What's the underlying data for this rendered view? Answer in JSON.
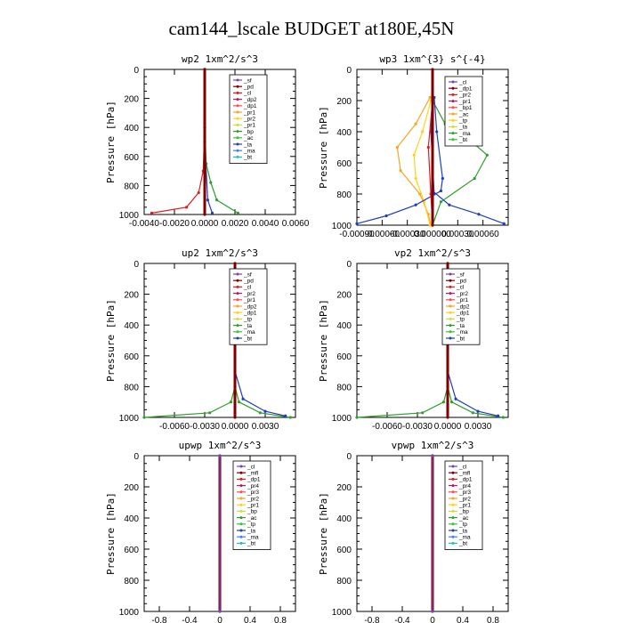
{
  "page": {
    "title": "cam144_lscale  BUDGET at180E,45N"
  },
  "chart_data": [
    {
      "id": "wp2",
      "type": "line",
      "title": "wp2  1xm^2/s^3",
      "ylabel": "Pressure [hPa]",
      "xlim": [
        -0.004,
        0.006
      ],
      "ylim": [
        1000,
        0
      ],
      "xticks": [
        -0.004,
        -0.002,
        0.0,
        0.002,
        0.004,
        0.006
      ],
      "xtick_labels": [
        "-0.0040",
        "-0.0020",
        "0.0000",
        "0.0020",
        "0.0040",
        "0.0060"
      ],
      "yticks": [
        0,
        200,
        400,
        600,
        800,
        1000
      ],
      "legend_position": "top-right",
      "legend": [
        "_sf",
        "_pd",
        "_cl",
        "_dp2",
        "_dp1",
        "_pr1",
        "_pr2",
        "_pr1",
        "_bp",
        "_ac",
        "_ta",
        "_ma",
        "_bt"
      ],
      "series": [
        {
          "name": "_dp1",
          "color": "#e41a1c",
          "points": [
            [
              0,
              0
            ],
            [
              0,
              400
            ],
            [
              -0.0001,
              700
            ],
            [
              -0.0004,
              850
            ],
            [
              -0.0012,
              950
            ],
            [
              -0.0035,
              990
            ]
          ]
        },
        {
          "name": "_pr1",
          "color": "#2ca02c",
          "points": [
            [
              0,
              0
            ],
            [
              0,
              400
            ],
            [
              0.0001,
              650
            ],
            [
              0.0004,
              780
            ],
            [
              0.0008,
              900
            ],
            [
              0.0022,
              990
            ]
          ]
        },
        {
          "name": "_ac",
          "color": "#1f3fbf",
          "points": [
            [
              0,
              0
            ],
            [
              0,
              500
            ],
            [
              0.0002,
              900
            ],
            [
              0.0005,
              990
            ]
          ]
        },
        {
          "name": "_bt",
          "color": "#800000",
          "points": [
            [
              0,
              0
            ],
            [
              0,
              1000
            ]
          ]
        }
      ]
    },
    {
      "id": "wp3",
      "type": "line",
      "title": "wp3  1xm^{3} s^{-4}",
      "ylabel": "Pressure [hPa]",
      "xlim": [
        -0.0009,
        0.0009
      ],
      "ylim": [
        1000,
        0
      ],
      "xticks": [
        -0.0009,
        -0.0006,
        -0.0003,
        0.0,
        0.0003,
        0.0006
      ],
      "xtick_labels": [
        "-0.00090",
        "-0.00060",
        "-0.00030",
        "0.000000",
        "0.00030",
        "0.00060"
      ],
      "yticks": [
        0,
        200,
        400,
        600,
        800,
        1000
      ],
      "legend_position": "top-right",
      "legend": [
        "_cl",
        "_dp1",
        "_pr2",
        "_pr1",
        "_bp1",
        "_ac",
        "_tp",
        "_ta",
        "_ma",
        "_bt"
      ],
      "series": [
        {
          "name": "_pr1",
          "color": "#f5a623",
          "points": [
            [
              -3e-05,
              180
            ],
            [
              -0.0002,
              350
            ],
            [
              -0.00042,
              500
            ],
            [
              -0.00038,
              650
            ],
            [
              -0.00015,
              800
            ],
            [
              -5e-05,
              930
            ],
            [
              -2e-05,
              1000
            ]
          ]
        },
        {
          "name": "_pr2",
          "color": "#ffd21a",
          "points": [
            [
              -2e-05,
              200
            ],
            [
              -0.00012,
              400
            ],
            [
              -0.00022,
              550
            ],
            [
              -0.0002,
              700
            ],
            [
              -0.0001,
              850
            ],
            [
              -3e-05,
              1000
            ]
          ]
        },
        {
          "name": "_bp1",
          "color": "#2ca02c",
          "points": [
            [
              0,
              200
            ],
            [
              0.00015,
              350
            ],
            [
              0.0005,
              480
            ],
            [
              0.00065,
              550
            ],
            [
              0.0005,
              700
            ],
            [
              0.0001,
              850
            ],
            [
              0,
              1000
            ]
          ]
        },
        {
          "name": "_ac",
          "color": "#1f3fbf",
          "points": [
            [
              2e-05,
              180
            ],
            [
              5e-05,
              400
            ],
            [
              0.00012,
              700
            ],
            [
              0.0001,
              780
            ],
            [
              -0.0002,
              870
            ],
            [
              -0.00055,
              940
            ],
            [
              -0.0009,
              990
            ]
          ]
        },
        {
          "name": "_tp",
          "color": "#1f3fbf",
          "points": [
            [
              0,
              780
            ],
            [
              0.0002,
              870
            ],
            [
              0.00055,
              930
            ],
            [
              0.00085,
              990
            ]
          ]
        },
        {
          "name": "_ta",
          "color": "#1f3fbf",
          "points": [
            [
              0,
              190
            ],
            [
              -2e-05,
              400
            ],
            [
              2e-05,
              800
            ]
          ]
        },
        {
          "name": "_dp1",
          "color": "#e41a1c",
          "points": [
            [
              0,
              200
            ],
            [
              -5e-05,
              500
            ],
            [
              -2e-05,
              800
            ],
            [
              0,
              1000
            ]
          ]
        },
        {
          "name": "_bt",
          "color": "#800000",
          "points": [
            [
              0,
              0
            ],
            [
              0,
              1000
            ]
          ]
        }
      ]
    },
    {
      "id": "up2",
      "type": "line",
      "title": "up2  1xm^2/s^3",
      "ylabel": "Pressure [hPa]",
      "xlim": [
        -0.009,
        0.006
      ],
      "ylim": [
        1000,
        0
      ],
      "xticks": [
        -0.006,
        -0.003,
        0.0,
        0.003
      ],
      "xtick_labels": [
        "-0.0060",
        "-0.0030",
        "0.0000",
        "0.0030"
      ],
      "yticks": [
        0,
        200,
        400,
        600,
        800,
        1000
      ],
      "legend_position": "top-right",
      "legend": [
        "_sf",
        "_pd",
        "_cl",
        "_pr2",
        "_pr1",
        "_dp2",
        "_dp1",
        "_tp",
        "_ta",
        "_ma",
        "_bt"
      ],
      "series": [
        {
          "name": "_dp1",
          "color": "#2ca02c",
          "points": [
            [
              0,
              0
            ],
            [
              0,
              800
            ],
            [
              -0.0004,
              900
            ],
            [
              -0.0025,
              970
            ],
            [
              -0.009,
              1000
            ]
          ]
        },
        {
          "name": "_pr1",
          "color": "#2ca02c",
          "points": [
            [
              0,
              0
            ],
            [
              0,
              800
            ],
            [
              0.0004,
              900
            ],
            [
              0.0025,
              970
            ],
            [
              0.0055,
              1000
            ]
          ]
        },
        {
          "name": "_tp",
          "color": "#1f3fbf",
          "points": [
            [
              0,
              700
            ],
            [
              0.0008,
              880
            ],
            [
              0.003,
              960
            ],
            [
              0.005,
              990
            ]
          ]
        },
        {
          "name": "_bt",
          "color": "#800000",
          "points": [
            [
              0,
              0
            ],
            [
              0,
              1000
            ]
          ]
        }
      ]
    },
    {
      "id": "vp2",
      "type": "line",
      "title": "vp2  1xm^2/s^3",
      "ylabel": "Pressure [hPa]",
      "xlim": [
        -0.009,
        0.006
      ],
      "ylim": [
        1000,
        0
      ],
      "xticks": [
        -0.006,
        -0.003,
        0.0,
        0.003
      ],
      "xtick_labels": [
        "-0.0060",
        "-0.0030",
        "0.0000",
        "0.0030"
      ],
      "yticks": [
        0,
        200,
        400,
        600,
        800,
        1000
      ],
      "legend_position": "top-right",
      "legend": [
        "_sf",
        "_pd",
        "_cl",
        "_pr2",
        "_pr1",
        "_dp2",
        "_dp1",
        "_tp",
        "_ta",
        "_ma",
        "_bt"
      ],
      "series": [
        {
          "name": "_dp1",
          "color": "#2ca02c",
          "points": [
            [
              0,
              0
            ],
            [
              0,
              800
            ],
            [
              -0.0004,
              900
            ],
            [
              -0.0025,
              970
            ],
            [
              -0.009,
              1000
            ]
          ]
        },
        {
          "name": "_pr1",
          "color": "#2ca02c",
          "points": [
            [
              0,
              0
            ],
            [
              0,
              800
            ],
            [
              0.0004,
              900
            ],
            [
              0.0025,
              970
            ],
            [
              0.0055,
              1000
            ]
          ]
        },
        {
          "name": "_tp",
          "color": "#1f3fbf",
          "points": [
            [
              0,
              700
            ],
            [
              0.0008,
              880
            ],
            [
              0.003,
              960
            ],
            [
              0.005,
              990
            ]
          ]
        },
        {
          "name": "_bt",
          "color": "#800000",
          "points": [
            [
              0,
              0
            ],
            [
              0,
              1000
            ]
          ]
        }
      ]
    },
    {
      "id": "upwp",
      "type": "line",
      "title": "upwp  1xm^2/s^3",
      "ylabel": "Pressure [hPa]",
      "xlim": [
        -1.0,
        1.0
      ],
      "ylim": [
        1000,
        0
      ],
      "xticks": [
        -0.8,
        -0.4,
        0.0,
        0.4,
        0.8
      ],
      "xtick_labels": [
        "-0.8",
        "-0.4",
        "0",
        "0.4",
        "0.8"
      ],
      "yticks": [
        0,
        200,
        400,
        600,
        800,
        1000
      ],
      "legend_position": "top-right",
      "legend": [
        "_cl",
        "_mfl",
        "_dp1",
        "_pr4",
        "_pr3",
        "_pr2",
        "_pr1",
        "_bp",
        "_ac",
        "_tp",
        "_ta",
        "_ma",
        "_bt"
      ],
      "series": [
        {
          "name": "_bt",
          "color": "#800000",
          "points": [
            [
              0,
              0
            ],
            [
              0,
              1000
            ]
          ]
        },
        {
          "name": "_cl",
          "color": "#7b3fbf",
          "points": [
            [
              0,
              0
            ],
            [
              0,
              1000
            ]
          ]
        }
      ]
    },
    {
      "id": "vpwp",
      "type": "line",
      "title": "vpwp  1xm^2/s^3",
      "ylabel": "Pressure [hPa]",
      "xlim": [
        -1.0,
        1.0
      ],
      "ylim": [
        1000,
        0
      ],
      "xticks": [
        -0.8,
        -0.4,
        0.0,
        0.4,
        0.8
      ],
      "xtick_labels": [
        "-0.8",
        "-0.4",
        "0",
        "0.4",
        "0.8"
      ],
      "yticks": [
        0,
        200,
        400,
        600,
        800,
        1000
      ],
      "legend_position": "top-right",
      "legend": [
        "_cl",
        "_mfl",
        "_dp1",
        "_pr4",
        "_pr3",
        "_pr2",
        "_pr1",
        "_bp",
        "_ac",
        "_tp",
        "_ta",
        "_ma",
        "_bt"
      ],
      "series": [
        {
          "name": "_bt",
          "color": "#800000",
          "points": [
            [
              0,
              0
            ],
            [
              0,
              1000
            ]
          ]
        },
        {
          "name": "_cl",
          "color": "#7b3fbf",
          "points": [
            [
              0,
              0
            ],
            [
              0,
              1000
            ]
          ]
        }
      ]
    }
  ],
  "legend_colors": [
    "#7b3fbf",
    "#800000",
    "#e41a1c",
    "#c2185b",
    "#ff4d4d",
    "#f5a623",
    "#ffd21a",
    "#c8e03a",
    "#2ca02c",
    "#3cbf3c",
    "#1f3fbf",
    "#3f7fff",
    "#1fbfbf",
    "#00e0ff"
  ]
}
